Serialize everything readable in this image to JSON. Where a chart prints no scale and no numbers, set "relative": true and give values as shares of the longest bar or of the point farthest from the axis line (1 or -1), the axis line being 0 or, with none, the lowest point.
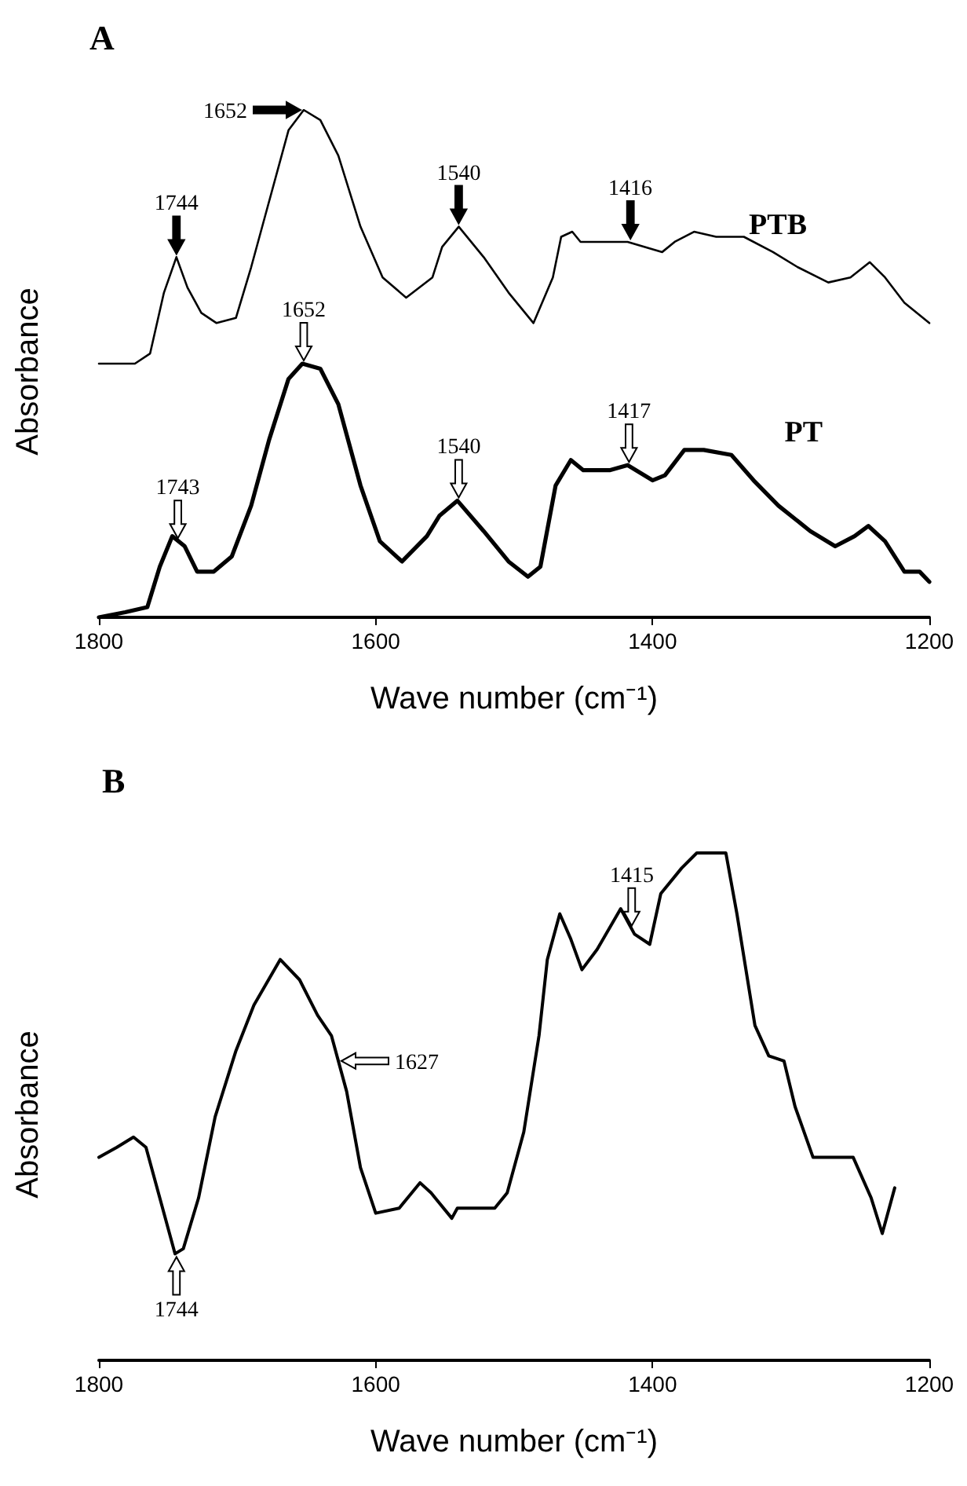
{
  "chart_data": [
    {
      "type": "line",
      "title": "A",
      "xlabel": "Wave number (cm⁻¹)",
      "ylabel": "Absorbance",
      "relative": true,
      "xlim": [
        1800,
        1200
      ],
      "xticks": [
        1800,
        1600,
        1400,
        1200
      ],
      "grid": false,
      "legend": false,
      "marker": "none",
      "line_style": "solid",
      "series": [
        {
          "name": "PTB",
          "color": "#000000",
          "x": [
            1800,
            1774,
            1763,
            1753,
            1744,
            1736,
            1726,
            1715,
            1701,
            1690,
            1677,
            1663,
            1652,
            1640,
            1627,
            1611,
            1595,
            1578,
            1559,
            1552,
            1540,
            1522,
            1504,
            1486,
            1472,
            1466,
            1458,
            1452,
            1436,
            1418,
            1393,
            1384,
            1370,
            1354,
            1334,
            1313,
            1295,
            1273,
            1257,
            1243,
            1232,
            1218,
            1200
          ],
          "values": [
            0.5,
            0.5,
            0.52,
            0.64,
            0.71,
            0.65,
            0.6,
            0.58,
            0.59,
            0.69,
            0.82,
            0.96,
            1.0,
            0.98,
            0.91,
            0.77,
            0.67,
            0.63,
            0.67,
            0.73,
            0.77,
            0.71,
            0.64,
            0.58,
            0.67,
            0.75,
            0.76,
            0.74,
            0.74,
            0.74,
            0.72,
            0.74,
            0.76,
            0.75,
            0.75,
            0.72,
            0.69,
            0.66,
            0.67,
            0.7,
            0.67,
            0.62,
            0.58
          ]
        },
        {
          "name": "PT",
          "color": "#000000",
          "x": [
            1800,
            1781,
            1765,
            1756,
            1747,
            1738,
            1729,
            1717,
            1704,
            1690,
            1677,
            1663,
            1653,
            1640,
            1627,
            1611,
            1597,
            1581,
            1563,
            1554,
            1541,
            1522,
            1504,
            1490,
            1481,
            1470,
            1459,
            1450,
            1431,
            1418,
            1400,
            1391,
            1377,
            1363,
            1343,
            1327,
            1309,
            1286,
            1268,
            1254,
            1244,
            1232,
            1218,
            1207,
            1200
          ],
          "values": [
            0.0,
            0.01,
            0.02,
            0.1,
            0.16,
            0.14,
            0.09,
            0.09,
            0.12,
            0.22,
            0.35,
            0.47,
            0.5,
            0.49,
            0.42,
            0.26,
            0.15,
            0.11,
            0.16,
            0.2,
            0.23,
            0.17,
            0.11,
            0.08,
            0.1,
            0.26,
            0.31,
            0.29,
            0.29,
            0.3,
            0.27,
            0.28,
            0.33,
            0.33,
            0.32,
            0.27,
            0.22,
            0.17,
            0.14,
            0.16,
            0.18,
            0.15,
            0.09,
            0.09,
            0.07
          ]
        }
      ],
      "annotations": [
        {
          "text": "1744",
          "x": 1744,
          "y": 0.71
        },
        {
          "text": "1652",
          "x": 1652,
          "y": 1.0
        },
        {
          "text": "1540",
          "x": 1540,
          "y": 0.77
        },
        {
          "text": "1416",
          "x": 1416,
          "y": 0.74
        },
        {
          "text": "1743",
          "x": 1743,
          "y": 0.15
        },
        {
          "text": "1652",
          "x": 1652,
          "y": 0.5
        },
        {
          "text": "1540",
          "x": 1540,
          "y": 0.23
        },
        {
          "text": "1417",
          "x": 1417,
          "y": 0.3
        }
      ]
    },
    {
      "type": "line",
      "title": "B",
      "xlabel": "Wave number (cm⁻¹)",
      "ylabel": "Absorbance",
      "relative": true,
      "xlim": [
        1800,
        1200
      ],
      "xticks": [
        1800,
        1600,
        1400,
        1200
      ],
      "grid": false,
      "legend": false,
      "marker": "none",
      "line_style": "solid",
      "series": [
        {
          "color": "#000000",
          "x": [
            1800,
            1787,
            1775,
            1766,
            1756,
            1745,
            1739,
            1728,
            1716,
            1701,
            1688,
            1669,
            1655,
            1642,
            1632,
            1621,
            1611,
            1600,
            1583,
            1568,
            1560,
            1545,
            1541,
            1528,
            1514,
            1505,
            1493,
            1482,
            1476,
            1467,
            1459,
            1451,
            1440,
            1423,
            1413,
            1402,
            1394,
            1379,
            1368,
            1347,
            1339,
            1326,
            1316,
            1305,
            1297,
            1284,
            1267,
            1255,
            1242,
            1234,
            1225
          ],
          "values": [
            0.4,
            0.42,
            0.44,
            0.42,
            0.32,
            0.21,
            0.22,
            0.32,
            0.48,
            0.61,
            0.7,
            0.79,
            0.75,
            0.68,
            0.64,
            0.53,
            0.38,
            0.29,
            0.3,
            0.35,
            0.33,
            0.28,
            0.3,
            0.3,
            0.3,
            0.33,
            0.45,
            0.64,
            0.79,
            0.88,
            0.83,
            0.77,
            0.81,
            0.89,
            0.84,
            0.82,
            0.92,
            0.97,
            1.0,
            1.0,
            0.88,
            0.66,
            0.6,
            0.59,
            0.5,
            0.4,
            0.4,
            0.4,
            0.32,
            0.25,
            0.34
          ]
        }
      ],
      "annotations": [
        {
          "text": "1744",
          "x": 1744,
          "y": 0.21
        },
        {
          "text": "1627",
          "x": 1627,
          "y": 0.59
        },
        {
          "text": "1415",
          "x": 1415,
          "y": 0.85
        }
      ]
    }
  ]
}
